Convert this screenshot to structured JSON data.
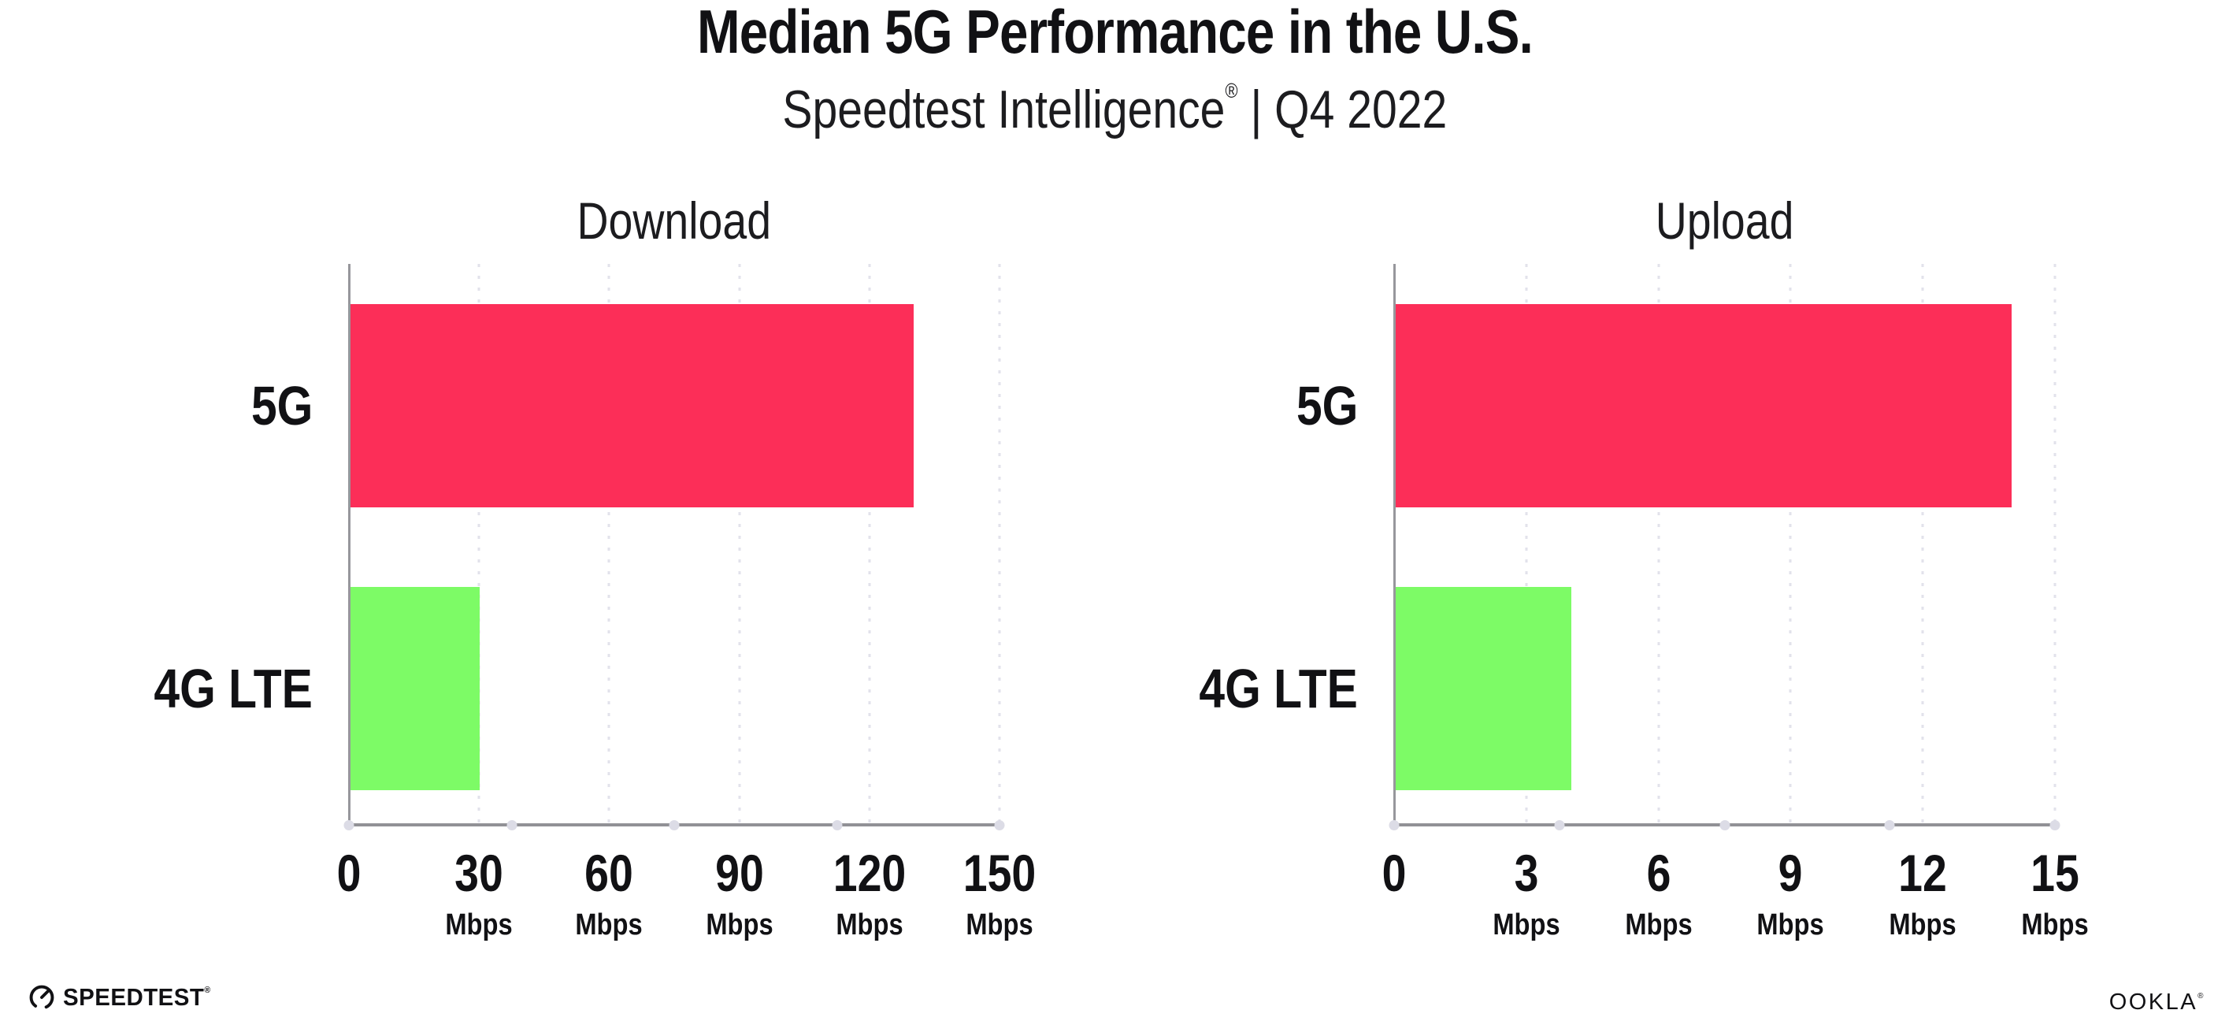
{
  "header": {
    "title": "Median 5G Performance in the U.S.",
    "subtitle_brand": "Speedtest Intelligence",
    "subtitle_reg": "®",
    "subtitle_rest": " | Q4 2022"
  },
  "chart_data": [
    {
      "type": "bar",
      "orientation": "horizontal",
      "title": "Download",
      "categories": [
        "5G",
        "4G LTE"
      ],
      "values": [
        130,
        30
      ],
      "unit": "Mbps",
      "xlim": [
        0,
        150
      ],
      "ticks": [
        0,
        30,
        60,
        90,
        120,
        150
      ],
      "grid": "dotted-vertical",
      "legend": "none",
      "bar_colors": [
        "#FC2E58",
        "#7DFB66"
      ]
    },
    {
      "type": "bar",
      "orientation": "horizontal",
      "title": "Upload",
      "categories": [
        "5G",
        "4G LTE"
      ],
      "values": [
        14,
        4
      ],
      "unit": "Mbps",
      "xlim": [
        0,
        15
      ],
      "ticks": [
        0,
        3,
        6,
        9,
        12,
        15
      ],
      "grid": "dotted-vertical",
      "legend": "none",
      "bar_colors": [
        "#FC2E58",
        "#7DFB66"
      ]
    }
  ],
  "colors": {
    "axis_line": "#919196",
    "axis_dot": "#dcdce6",
    "gridline_dot": "#e2e2eb",
    "text": "#111114"
  },
  "footer": {
    "speedtest_label": "SPEEDTEST",
    "speedtest_reg": "®",
    "ookla_label": "OOKLA",
    "ookla_reg": "®"
  }
}
